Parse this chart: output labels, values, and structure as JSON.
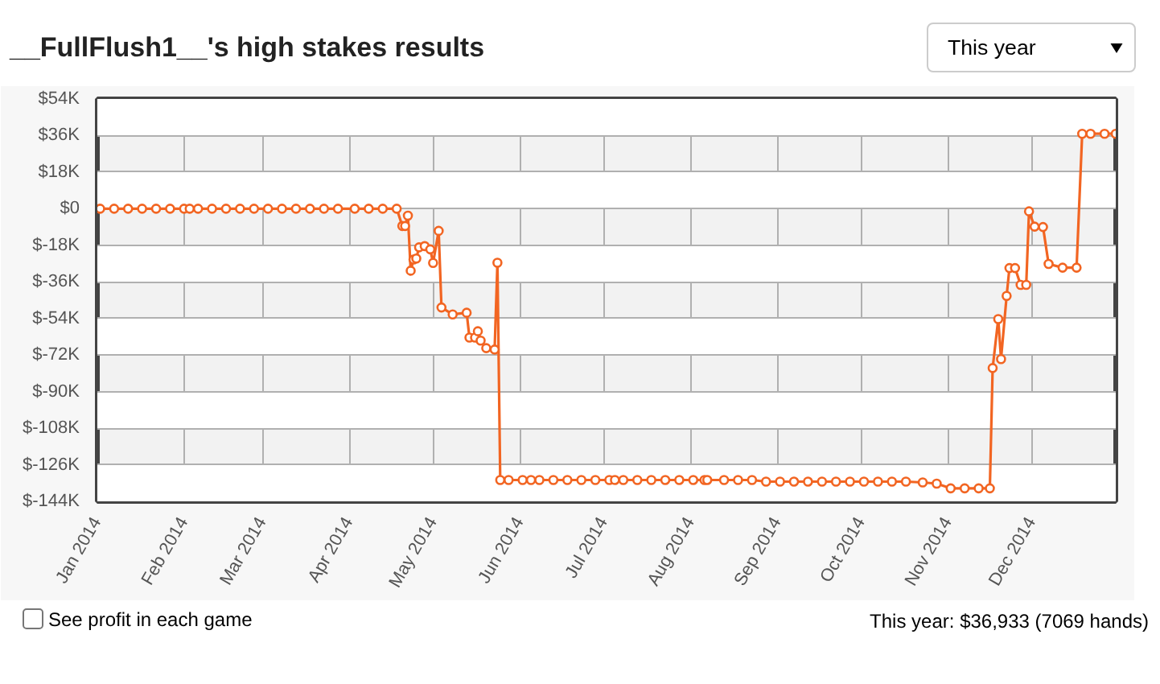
{
  "chart_data": {
    "type": "line",
    "title": "__FullFlush1__'s high stakes results",
    "annotations": [
      "This year",
      "See profit in each game",
      "This year: $36,933 (7069 hands)"
    ],
    "x": [
      "2014-01-02",
      "2014-01-07",
      "2014-01-12",
      "2014-01-17",
      "2014-01-22",
      "2014-01-27",
      "2014-02-01",
      "2014-02-03",
      "2014-02-06",
      "2014-02-11",
      "2014-02-16",
      "2014-02-21",
      "2014-02-26",
      "2014-03-03",
      "2014-03-08",
      "2014-03-13",
      "2014-03-18",
      "2014-03-23",
      "2014-03-28",
      "2014-04-03",
      "2014-04-08",
      "2014-04-13",
      "2014-04-18",
      "2014-04-20",
      "2014-04-21",
      "2014-04-22",
      "2014-04-23",
      "2014-04-24",
      "2014-04-25",
      "2014-04-26",
      "2014-04-28",
      "2014-04-30",
      "2014-05-01",
      "2014-05-03",
      "2014-05-04",
      "2014-05-08",
      "2014-05-13",
      "2014-05-14",
      "2014-05-16",
      "2014-05-17",
      "2014-05-18",
      "2014-05-20",
      "2014-05-23",
      "2014-05-24",
      "2014-05-25",
      "2014-05-28",
      "2014-06-02",
      "2014-06-05",
      "2014-06-08",
      "2014-06-13",
      "2014-06-18",
      "2014-06-23",
      "2014-06-28",
      "2014-07-03",
      "2014-07-05",
      "2014-07-08",
      "2014-07-13",
      "2014-07-18",
      "2014-07-23",
      "2014-07-28",
      "2014-08-02",
      "2014-08-06",
      "2014-08-07",
      "2014-08-13",
      "2014-08-18",
      "2014-08-23",
      "2014-08-28",
      "2014-09-02",
      "2014-09-07",
      "2014-09-12",
      "2014-09-17",
      "2014-09-22",
      "2014-09-27",
      "2014-10-02",
      "2014-10-07",
      "2014-10-12",
      "2014-10-17",
      "2014-10-23",
      "2014-10-28",
      "2014-11-02",
      "2014-11-07",
      "2014-11-12",
      "2014-11-16",
      "2014-11-17",
      "2014-11-19",
      "2014-11-20",
      "2014-11-22",
      "2014-11-23",
      "2014-11-25",
      "2014-11-27",
      "2014-11-29",
      "2014-11-30",
      "2014-12-02",
      "2014-12-05",
      "2014-12-07",
      "2014-12-12",
      "2014-12-17",
      "2014-12-19",
      "2014-12-22",
      "2014-12-27",
      "2014-12-31"
    ],
    "series": [
      {
        "color": "#f26522",
        "values": [
          0,
          0,
          0,
          0,
          0,
          0,
          0,
          0,
          0,
          0,
          0,
          0,
          0,
          0,
          0,
          0,
          0,
          0,
          0,
          0,
          0,
          0,
          0,
          -8500,
          -8500,
          -3400,
          -30500,
          -25000,
          -24500,
          -19000,
          -18400,
          -20000,
          -26700,
          -10900,
          -48600,
          -52000,
          -51200,
          -63400,
          -63400,
          -60300,
          -64900,
          -68600,
          -69300,
          -26600,
          -133500,
          -133500,
          -133500,
          -133500,
          -133500,
          -133500,
          -133500,
          -133500,
          -133500,
          -133500,
          -133500,
          -133500,
          -133500,
          -133500,
          -133500,
          -133500,
          -133500,
          -133500,
          -133500,
          -133500,
          -133500,
          -133500,
          -134300,
          -134300,
          -134300,
          -134300,
          -134300,
          -134300,
          -134300,
          -134300,
          -134300,
          -134300,
          -134300,
          -134700,
          -135300,
          -137600,
          -137600,
          -137600,
          -137600,
          -78400,
          -54300,
          -74000,
          -42900,
          -29200,
          -29200,
          -37500,
          -37500,
          -1300,
          -8800,
          -9000,
          -27200,
          -29000,
          -29000,
          36900,
          36900,
          36900,
          36900
        ]
      }
    ],
    "xlim": [
      "2014-01-01",
      "2014-12-31"
    ],
    "xticks": [
      {
        "value": "2014-01-01",
        "label": "Jan 2014"
      },
      {
        "value": "2014-02-01",
        "label": "Feb 2014"
      },
      {
        "value": "2014-03-01",
        "label": "Mar 2014"
      },
      {
        "value": "2014-04-01",
        "label": "Apr 2014"
      },
      {
        "value": "2014-05-01",
        "label": "May 2014"
      },
      {
        "value": "2014-06-01",
        "label": "Jun 2014"
      },
      {
        "value": "2014-07-01",
        "label": "Jul 2014"
      },
      {
        "value": "2014-08-01",
        "label": "Aug 2014"
      },
      {
        "value": "2014-09-01",
        "label": "Sep 2014"
      },
      {
        "value": "2014-10-01",
        "label": "Oct 2014"
      },
      {
        "value": "2014-11-01",
        "label": "Nov 2014"
      },
      {
        "value": "2014-12-01",
        "label": "Dec 2014"
      }
    ],
    "ylim": [
      -144000,
      54000
    ],
    "yticks": [
      {
        "value": 54000,
        "label": "$54K"
      },
      {
        "value": 36000,
        "label": "$36K"
      },
      {
        "value": 18000,
        "label": "$18K"
      },
      {
        "value": 0,
        "label": "$0"
      },
      {
        "value": -18000,
        "label": "$-18K"
      },
      {
        "value": -36000,
        "label": "$-36K"
      },
      {
        "value": -54000,
        "label": "$-54K"
      },
      {
        "value": -72000,
        "label": "$-72K"
      },
      {
        "value": -90000,
        "label": "$-90K"
      },
      {
        "value": -108000,
        "label": "$-108K"
      },
      {
        "value": -126000,
        "label": "$-126K"
      },
      {
        "value": -144000,
        "label": "$-144K"
      }
    ],
    "grid": true,
    "marker": "circle",
    "line_style": "solid"
  }
}
